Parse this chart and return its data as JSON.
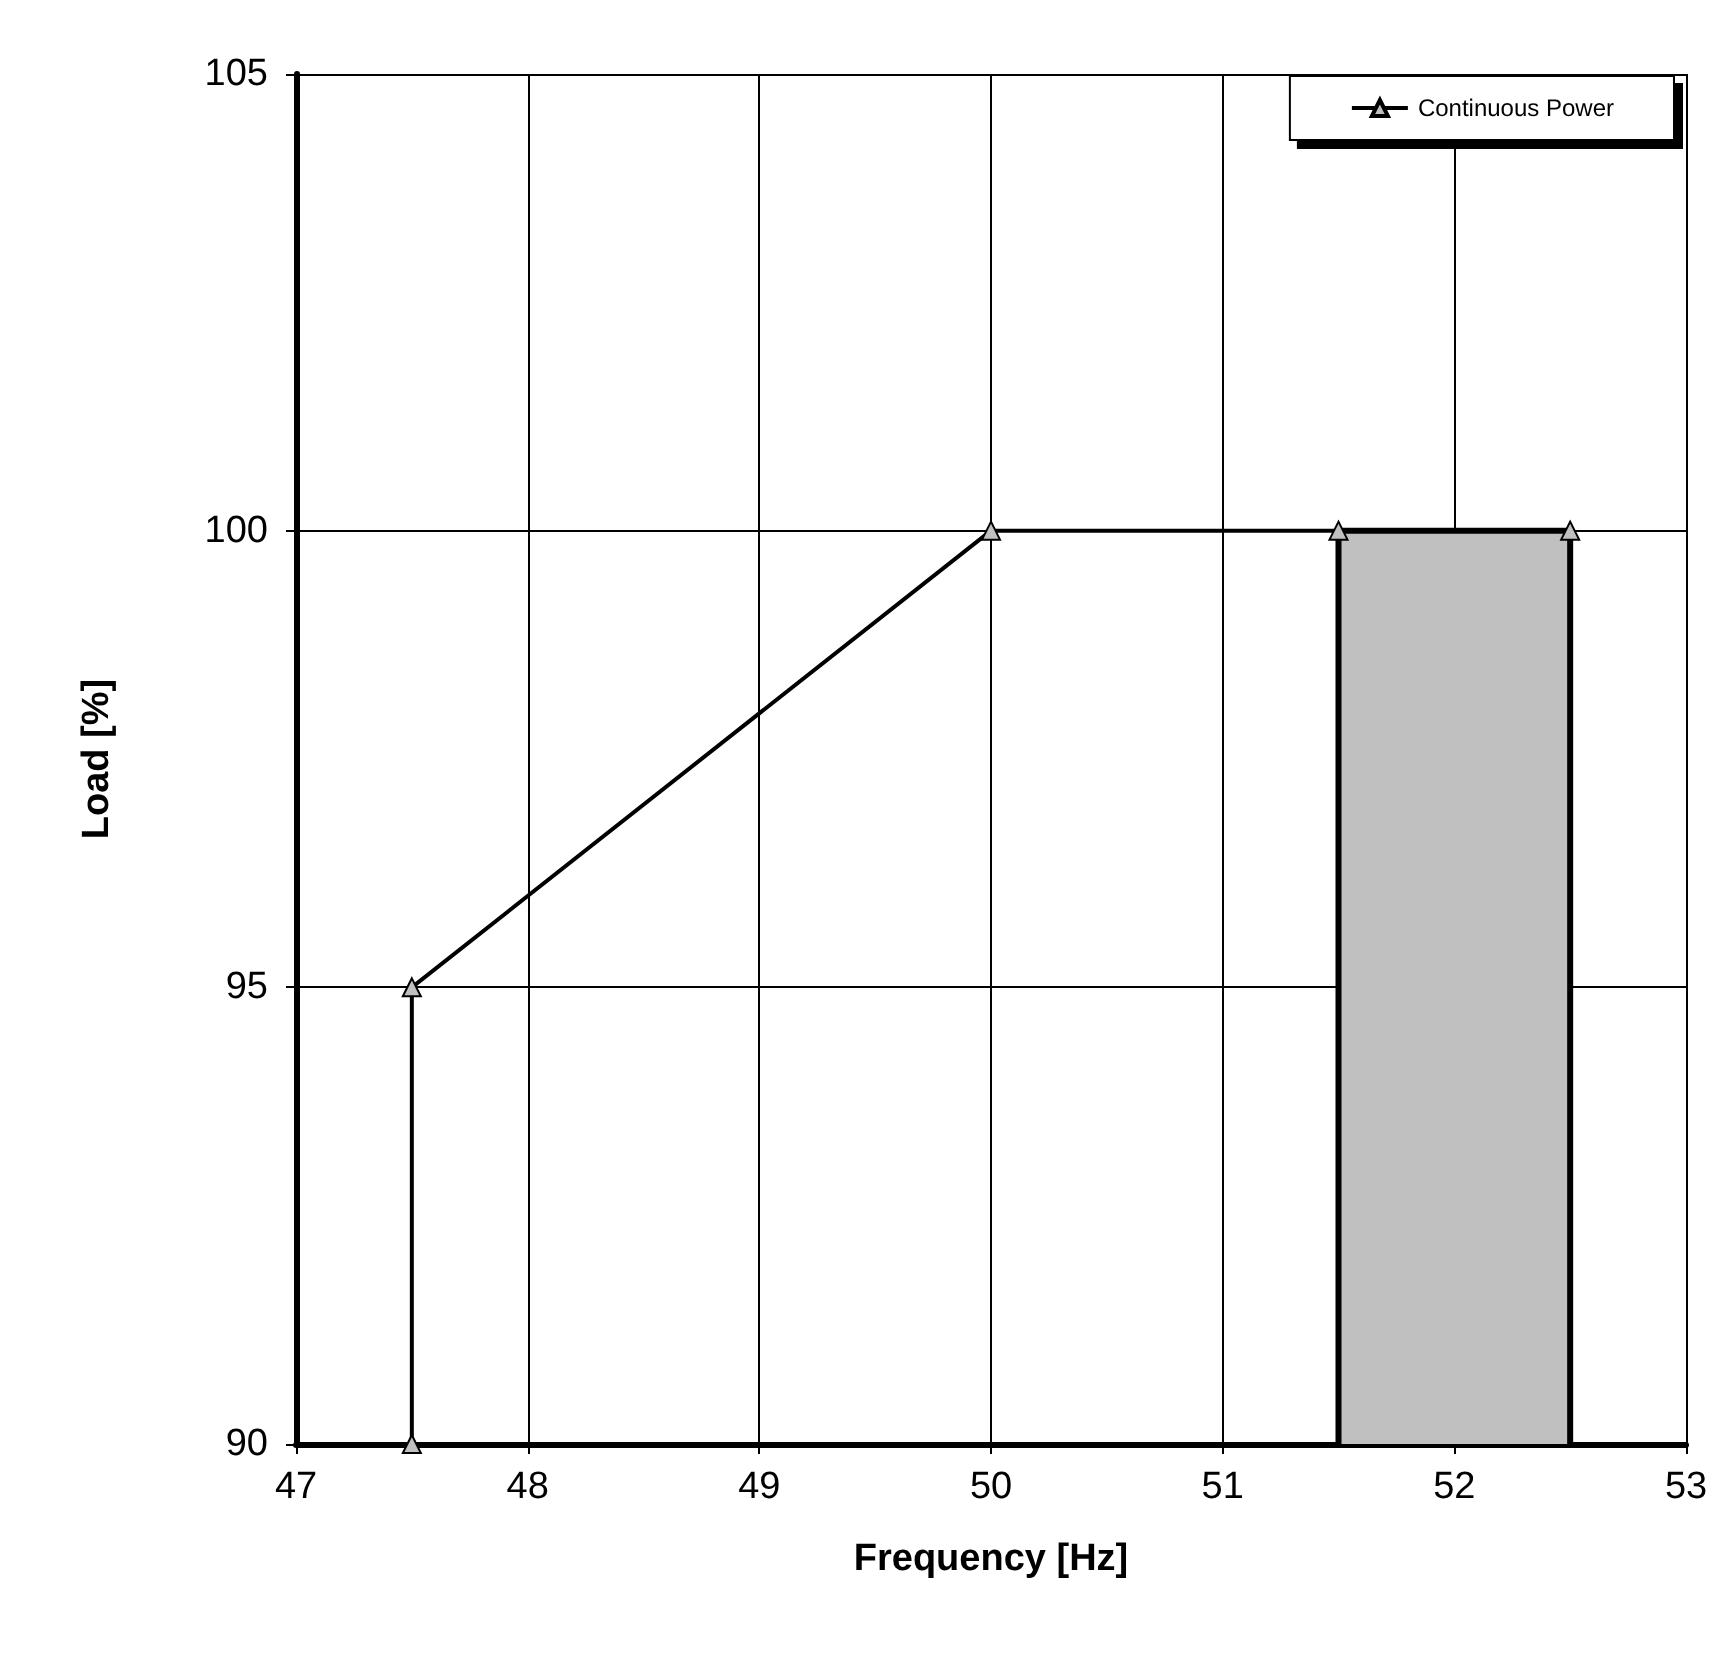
{
  "chart_data": {
    "type": "line",
    "xlabel": "Frequency [Hz]",
    "ylabel": "Load [%]",
    "xlim": [
      47,
      53
    ],
    "xticks": [
      47,
      48,
      49,
      50,
      51,
      52,
      53
    ],
    "ylim": [
      90,
      105
    ],
    "yticks": [
      90,
      95,
      100,
      105
    ],
    "grid": true,
    "legend": "top right",
    "marker": "triangle",
    "line_style": "solid",
    "series": [
      {
        "type": "area",
        "color": "#c0c0c0",
        "x": [
          51.5,
          51.5,
          52.5,
          52.5
        ],
        "values": [
          90,
          100,
          100,
          90
        ]
      },
      {
        "name": "Continuous Power",
        "color": "#000000",
        "x": [
          47.5,
          47.5,
          50,
          51.5,
          52.5
        ],
        "values": [
          90,
          95,
          100,
          100,
          100
        ]
      }
    ]
  }
}
